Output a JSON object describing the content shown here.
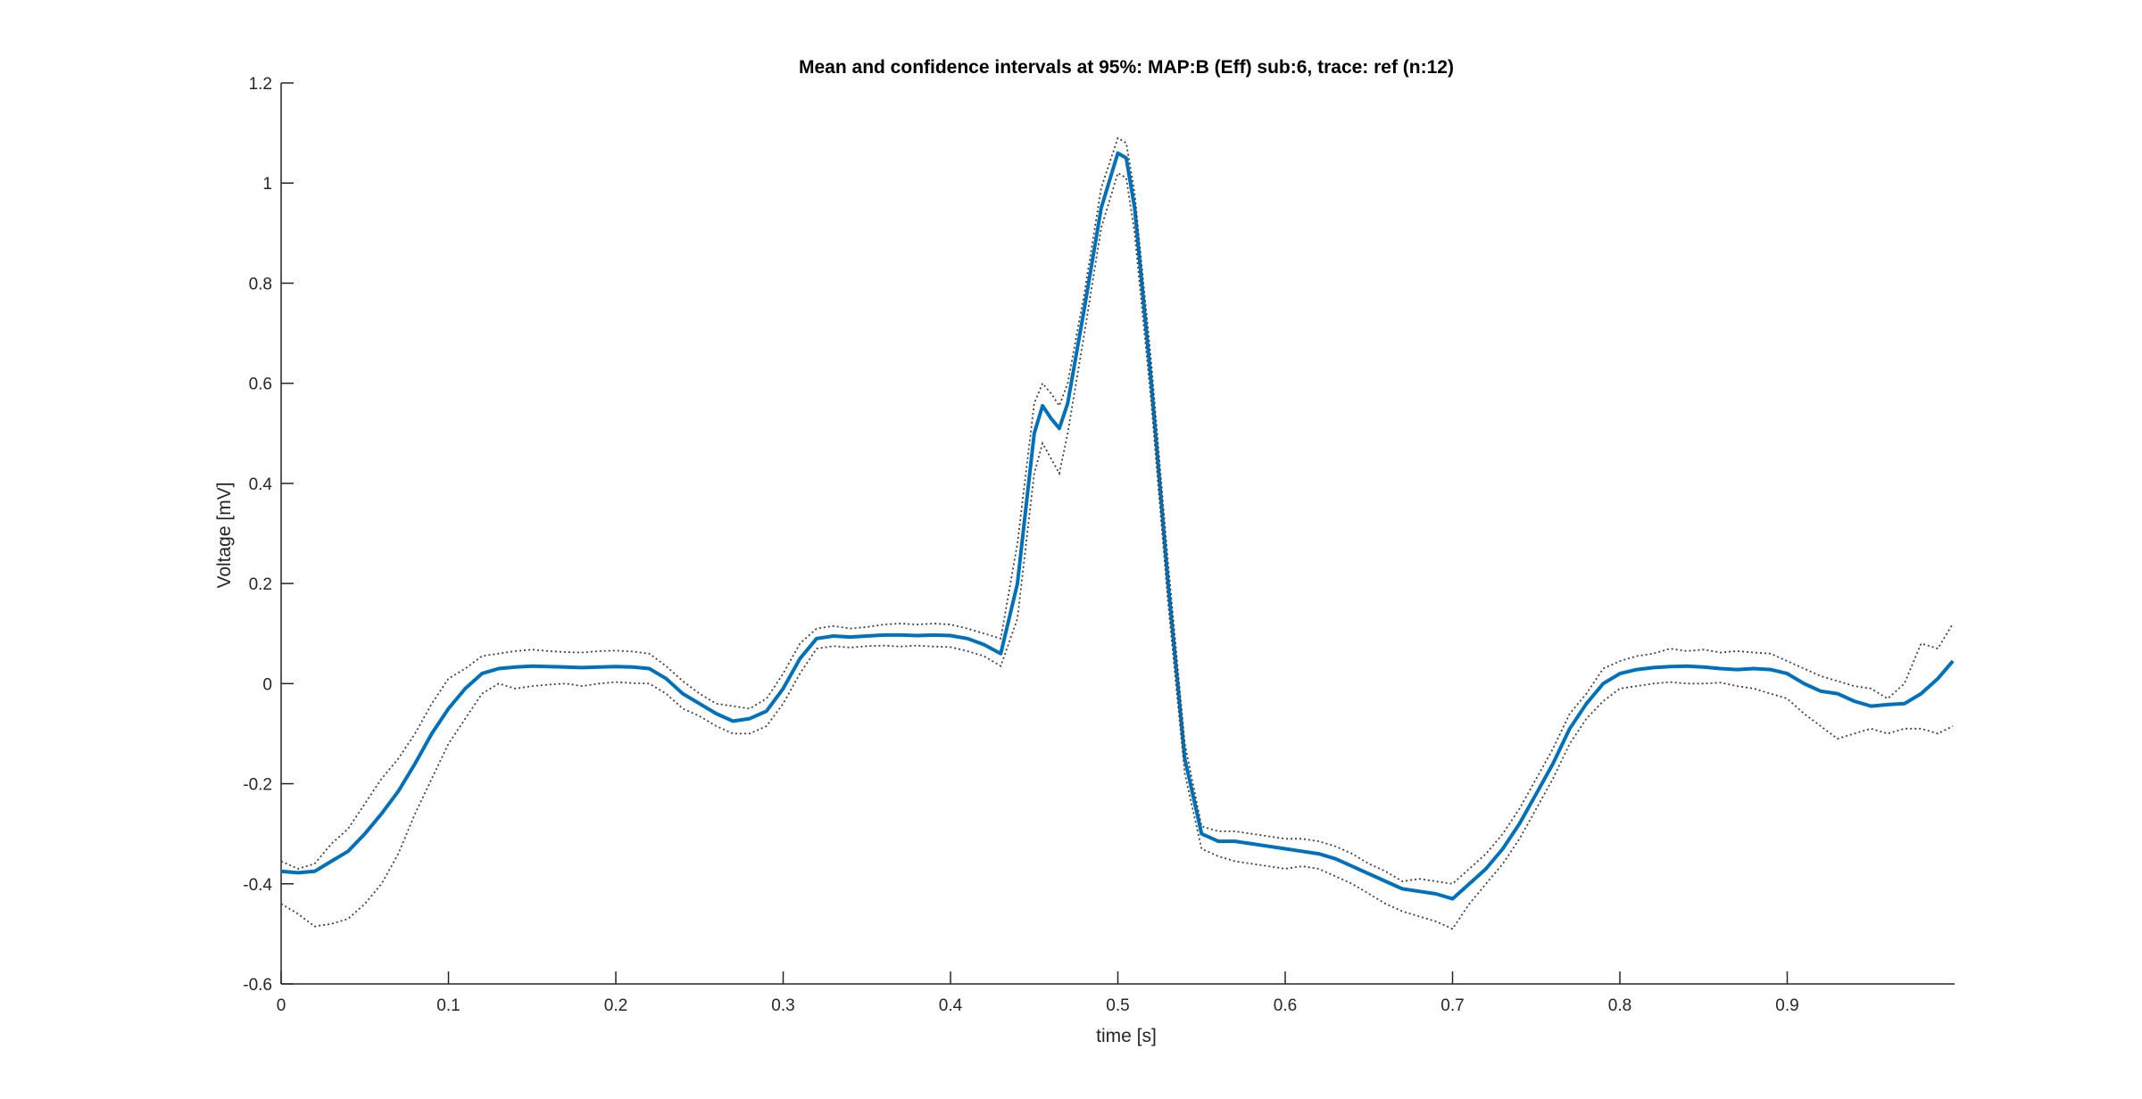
{
  "chart_data": {
    "type": "line",
    "title": "Mean and confidence intervals at 95%: MAP:B (Eff) sub:6, trace: ref (n:12)",
    "xlabel": "time [s]",
    "ylabel": "Voltage [mV]",
    "xlim": [
      0,
      1.0
    ],
    "ylim": [
      -0.6,
      1.2
    ],
    "xticks": [
      0,
      0.1,
      0.2,
      0.3,
      0.4,
      0.5,
      0.6,
      0.7,
      0.8,
      0.9
    ],
    "xtick_labels": [
      "0",
      "0.1",
      "0.2",
      "0.3",
      "0.4",
      "0.5",
      "0.6",
      "0.7",
      "0.8",
      "0.9"
    ],
    "yticks": [
      -0.6,
      -0.4,
      -0.2,
      0,
      0.2,
      0.4,
      0.6,
      0.8,
      1,
      1.2
    ],
    "ytick_labels": [
      "-0.6",
      "-0.4",
      "-0.2",
      "0",
      "0.2",
      "0.4",
      "0.6",
      "0.8",
      "1",
      "1.2"
    ],
    "grid": false,
    "legend": "none",
    "colors": {
      "mean": "#0072BD",
      "ci": "#404040"
    },
    "x": [
      0,
      0.01,
      0.02,
      0.03,
      0.04,
      0.05,
      0.06,
      0.07,
      0.08,
      0.09,
      0.1,
      0.11,
      0.12,
      0.13,
      0.14,
      0.15,
      0.16,
      0.17,
      0.18,
      0.19,
      0.2,
      0.21,
      0.22,
      0.23,
      0.24,
      0.25,
      0.26,
      0.27,
      0.28,
      0.29,
      0.3,
      0.31,
      0.32,
      0.33,
      0.34,
      0.35,
      0.36,
      0.37,
      0.38,
      0.39,
      0.4,
      0.41,
      0.42,
      0.43,
      0.44,
      0.45,
      0.455,
      0.46,
      0.465,
      0.47,
      0.48,
      0.49,
      0.5,
      0.505,
      0.51,
      0.52,
      0.53,
      0.54,
      0.55,
      0.56,
      0.57,
      0.58,
      0.59,
      0.6,
      0.61,
      0.62,
      0.63,
      0.64,
      0.65,
      0.66,
      0.67,
      0.68,
      0.69,
      0.7,
      0.71,
      0.72,
      0.73,
      0.74,
      0.75,
      0.76,
      0.77,
      0.78,
      0.79,
      0.8,
      0.81,
      0.82,
      0.83,
      0.84,
      0.85,
      0.86,
      0.87,
      0.88,
      0.89,
      0.9,
      0.91,
      0.92,
      0.93,
      0.94,
      0.95,
      0.96,
      0.97,
      0.98,
      0.99,
      0.999
    ],
    "series": [
      {
        "role": "mean",
        "values": [
          -0.375,
          -0.378,
          -0.375,
          -0.355,
          -0.335,
          -0.3,
          -0.26,
          -0.215,
          -0.16,
          -0.1,
          -0.05,
          -0.01,
          0.02,
          0.03,
          0.033,
          0.035,
          0.034,
          0.033,
          0.032,
          0.033,
          0.034,
          0.033,
          0.03,
          0.01,
          -0.02,
          -0.04,
          -0.06,
          -0.075,
          -0.07,
          -0.055,
          -0.01,
          0.05,
          0.09,
          0.095,
          0.093,
          0.095,
          0.097,
          0.097,
          0.096,
          0.097,
          0.096,
          0.09,
          0.078,
          0.06,
          0.2,
          0.5,
          0.555,
          0.53,
          0.51,
          0.56,
          0.75,
          0.95,
          1.06,
          1.05,
          0.95,
          0.6,
          0.2,
          -0.15,
          -0.3,
          -0.315,
          -0.315,
          -0.32,
          -0.325,
          -0.33,
          -0.335,
          -0.34,
          -0.35,
          -0.365,
          -0.38,
          -0.395,
          -0.41,
          -0.415,
          -0.42,
          -0.43,
          -0.4,
          -0.37,
          -0.33,
          -0.28,
          -0.22,
          -0.16,
          -0.09,
          -0.04,
          0.0,
          0.02,
          0.028,
          0.032,
          0.034,
          0.035,
          0.033,
          0.03,
          0.028,
          0.03,
          0.028,
          0.02,
          0.0,
          -0.015,
          -0.02,
          -0.035,
          -0.045,
          -0.042,
          -0.04,
          -0.02,
          0.01,
          0.045
        ]
      },
      {
        "role": "upper confidence bound",
        "values": [
          -0.355,
          -0.37,
          -0.36,
          -0.32,
          -0.29,
          -0.24,
          -0.19,
          -0.15,
          -0.1,
          -0.04,
          0.01,
          0.03,
          0.055,
          0.06,
          0.065,
          0.068,
          0.065,
          0.063,
          0.062,
          0.065,
          0.066,
          0.064,
          0.06,
          0.035,
          0.005,
          -0.02,
          -0.04,
          -0.045,
          -0.05,
          -0.03,
          0.02,
          0.08,
          0.11,
          0.115,
          0.11,
          0.113,
          0.118,
          0.12,
          0.118,
          0.12,
          0.118,
          0.11,
          0.1,
          0.09,
          0.28,
          0.56,
          0.6,
          0.58,
          0.555,
          0.6,
          0.78,
          0.99,
          1.09,
          1.08,
          0.98,
          0.64,
          0.24,
          -0.12,
          -0.285,
          -0.295,
          -0.295,
          -0.3,
          -0.305,
          -0.31,
          -0.31,
          -0.315,
          -0.325,
          -0.34,
          -0.36,
          -0.375,
          -0.395,
          -0.39,
          -0.395,
          -0.4,
          -0.37,
          -0.34,
          -0.3,
          -0.25,
          -0.19,
          -0.13,
          -0.06,
          -0.02,
          0.03,
          0.045,
          0.055,
          0.06,
          0.07,
          0.065,
          0.068,
          0.062,
          0.065,
          0.062,
          0.06,
          0.045,
          0.03,
          0.015,
          0.005,
          -0.005,
          -0.01,
          -0.03,
          0.0,
          0.08,
          0.07,
          0.12
        ]
      },
      {
        "role": "lower confidence bound",
        "values": [
          -0.44,
          -0.46,
          -0.485,
          -0.48,
          -0.47,
          -0.44,
          -0.4,
          -0.34,
          -0.26,
          -0.19,
          -0.12,
          -0.07,
          -0.02,
          0.0,
          -0.01,
          -0.005,
          -0.002,
          0.0,
          -0.005,
          0.0,
          0.003,
          0.001,
          0.0,
          -0.02,
          -0.05,
          -0.065,
          -0.085,
          -0.1,
          -0.1,
          -0.085,
          -0.04,
          0.02,
          0.07,
          0.075,
          0.072,
          0.075,
          0.076,
          0.074,
          0.076,
          0.074,
          0.073,
          0.065,
          0.055,
          0.035,
          0.13,
          0.42,
          0.48,
          0.45,
          0.42,
          0.5,
          0.7,
          0.91,
          1.02,
          1.01,
          0.9,
          0.56,
          0.16,
          -0.18,
          -0.33,
          -0.345,
          -0.355,
          -0.36,
          -0.365,
          -0.37,
          -0.365,
          -0.37,
          -0.385,
          -0.4,
          -0.42,
          -0.44,
          -0.455,
          -0.465,
          -0.475,
          -0.49,
          -0.44,
          -0.4,
          -0.36,
          -0.31,
          -0.25,
          -0.19,
          -0.12,
          -0.07,
          -0.035,
          -0.01,
          -0.005,
          0.0,
          0.003,
          0.0,
          0.0,
          0.002,
          -0.005,
          -0.01,
          -0.02,
          -0.03,
          -0.06,
          -0.085,
          -0.11,
          -0.1,
          -0.09,
          -0.1,
          -0.09,
          -0.09,
          -0.1,
          -0.085
        ]
      }
    ]
  }
}
